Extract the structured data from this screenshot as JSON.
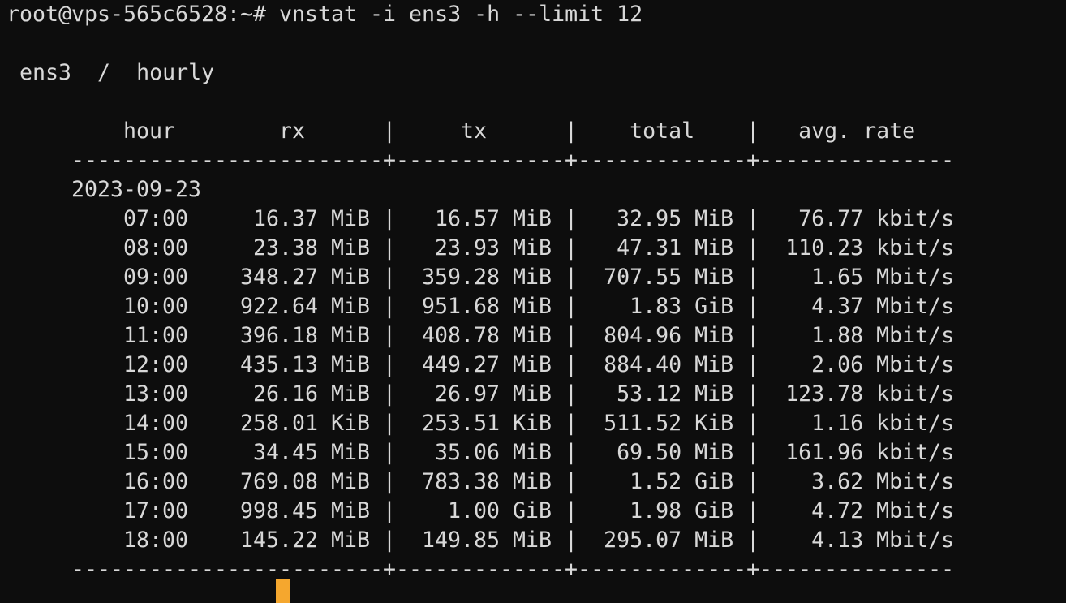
{
  "terminal": {
    "colors": {
      "background": "#0d0d0d",
      "foreground": "#d8d8d8",
      "cursor": "#f5a72e"
    },
    "prompt": "root@vps-565c6528:~#",
    "command": "vnstat -i ens3 -h --limit 12",
    "title": {
      "interface": "ens3",
      "separator": "/",
      "view": "hourly"
    },
    "table": {
      "headers": {
        "hour": "hour",
        "rx": "rx",
        "tx": "tx",
        "total": "total",
        "rate": "avg. rate"
      },
      "date": "2023-09-23",
      "rows": [
        {
          "hour": "07:00",
          "rx": "16.37 MiB",
          "tx": "16.57 MiB",
          "total": "32.95 MiB",
          "rate": "76.77 kbit/s"
        },
        {
          "hour": "08:00",
          "rx": "23.38 MiB",
          "tx": "23.93 MiB",
          "total": "47.31 MiB",
          "rate": "110.23 kbit/s"
        },
        {
          "hour": "09:00",
          "rx": "348.27 MiB",
          "tx": "359.28 MiB",
          "total": "707.55 MiB",
          "rate": "1.65 Mbit/s"
        },
        {
          "hour": "10:00",
          "rx": "922.64 MiB",
          "tx": "951.68 MiB",
          "total": "1.83 GiB",
          "rate": "4.37 Mbit/s"
        },
        {
          "hour": "11:00",
          "rx": "396.18 MiB",
          "tx": "408.78 MiB",
          "total": "804.96 MiB",
          "rate": "1.88 Mbit/s"
        },
        {
          "hour": "12:00",
          "rx": "435.13 MiB",
          "tx": "449.27 MiB",
          "total": "884.40 MiB",
          "rate": "2.06 Mbit/s"
        },
        {
          "hour": "13:00",
          "rx": "26.16 MiB",
          "tx": "26.97 MiB",
          "total": "53.12 MiB",
          "rate": "123.78 kbit/s"
        },
        {
          "hour": "14:00",
          "rx": "258.01 KiB",
          "tx": "253.51 KiB",
          "total": "511.52 KiB",
          "rate": "1.16 kbit/s"
        },
        {
          "hour": "15:00",
          "rx": "34.45 MiB",
          "tx": "35.06 MiB",
          "total": "69.50 MiB",
          "rate": "161.96 kbit/s"
        },
        {
          "hour": "16:00",
          "rx": "769.08 MiB",
          "tx": "783.38 MiB",
          "total": "1.52 GiB",
          "rate": "3.62 Mbit/s"
        },
        {
          "hour": "17:00",
          "rx": "998.45 MiB",
          "tx": "1.00 GiB",
          "total": "1.98 GiB",
          "rate": "4.72 Mbit/s"
        },
        {
          "hour": "18:00",
          "rx": "145.22 MiB",
          "tx": "149.85 MiB",
          "total": "295.07 MiB",
          "rate": "4.13 Mbit/s"
        }
      ]
    }
  }
}
